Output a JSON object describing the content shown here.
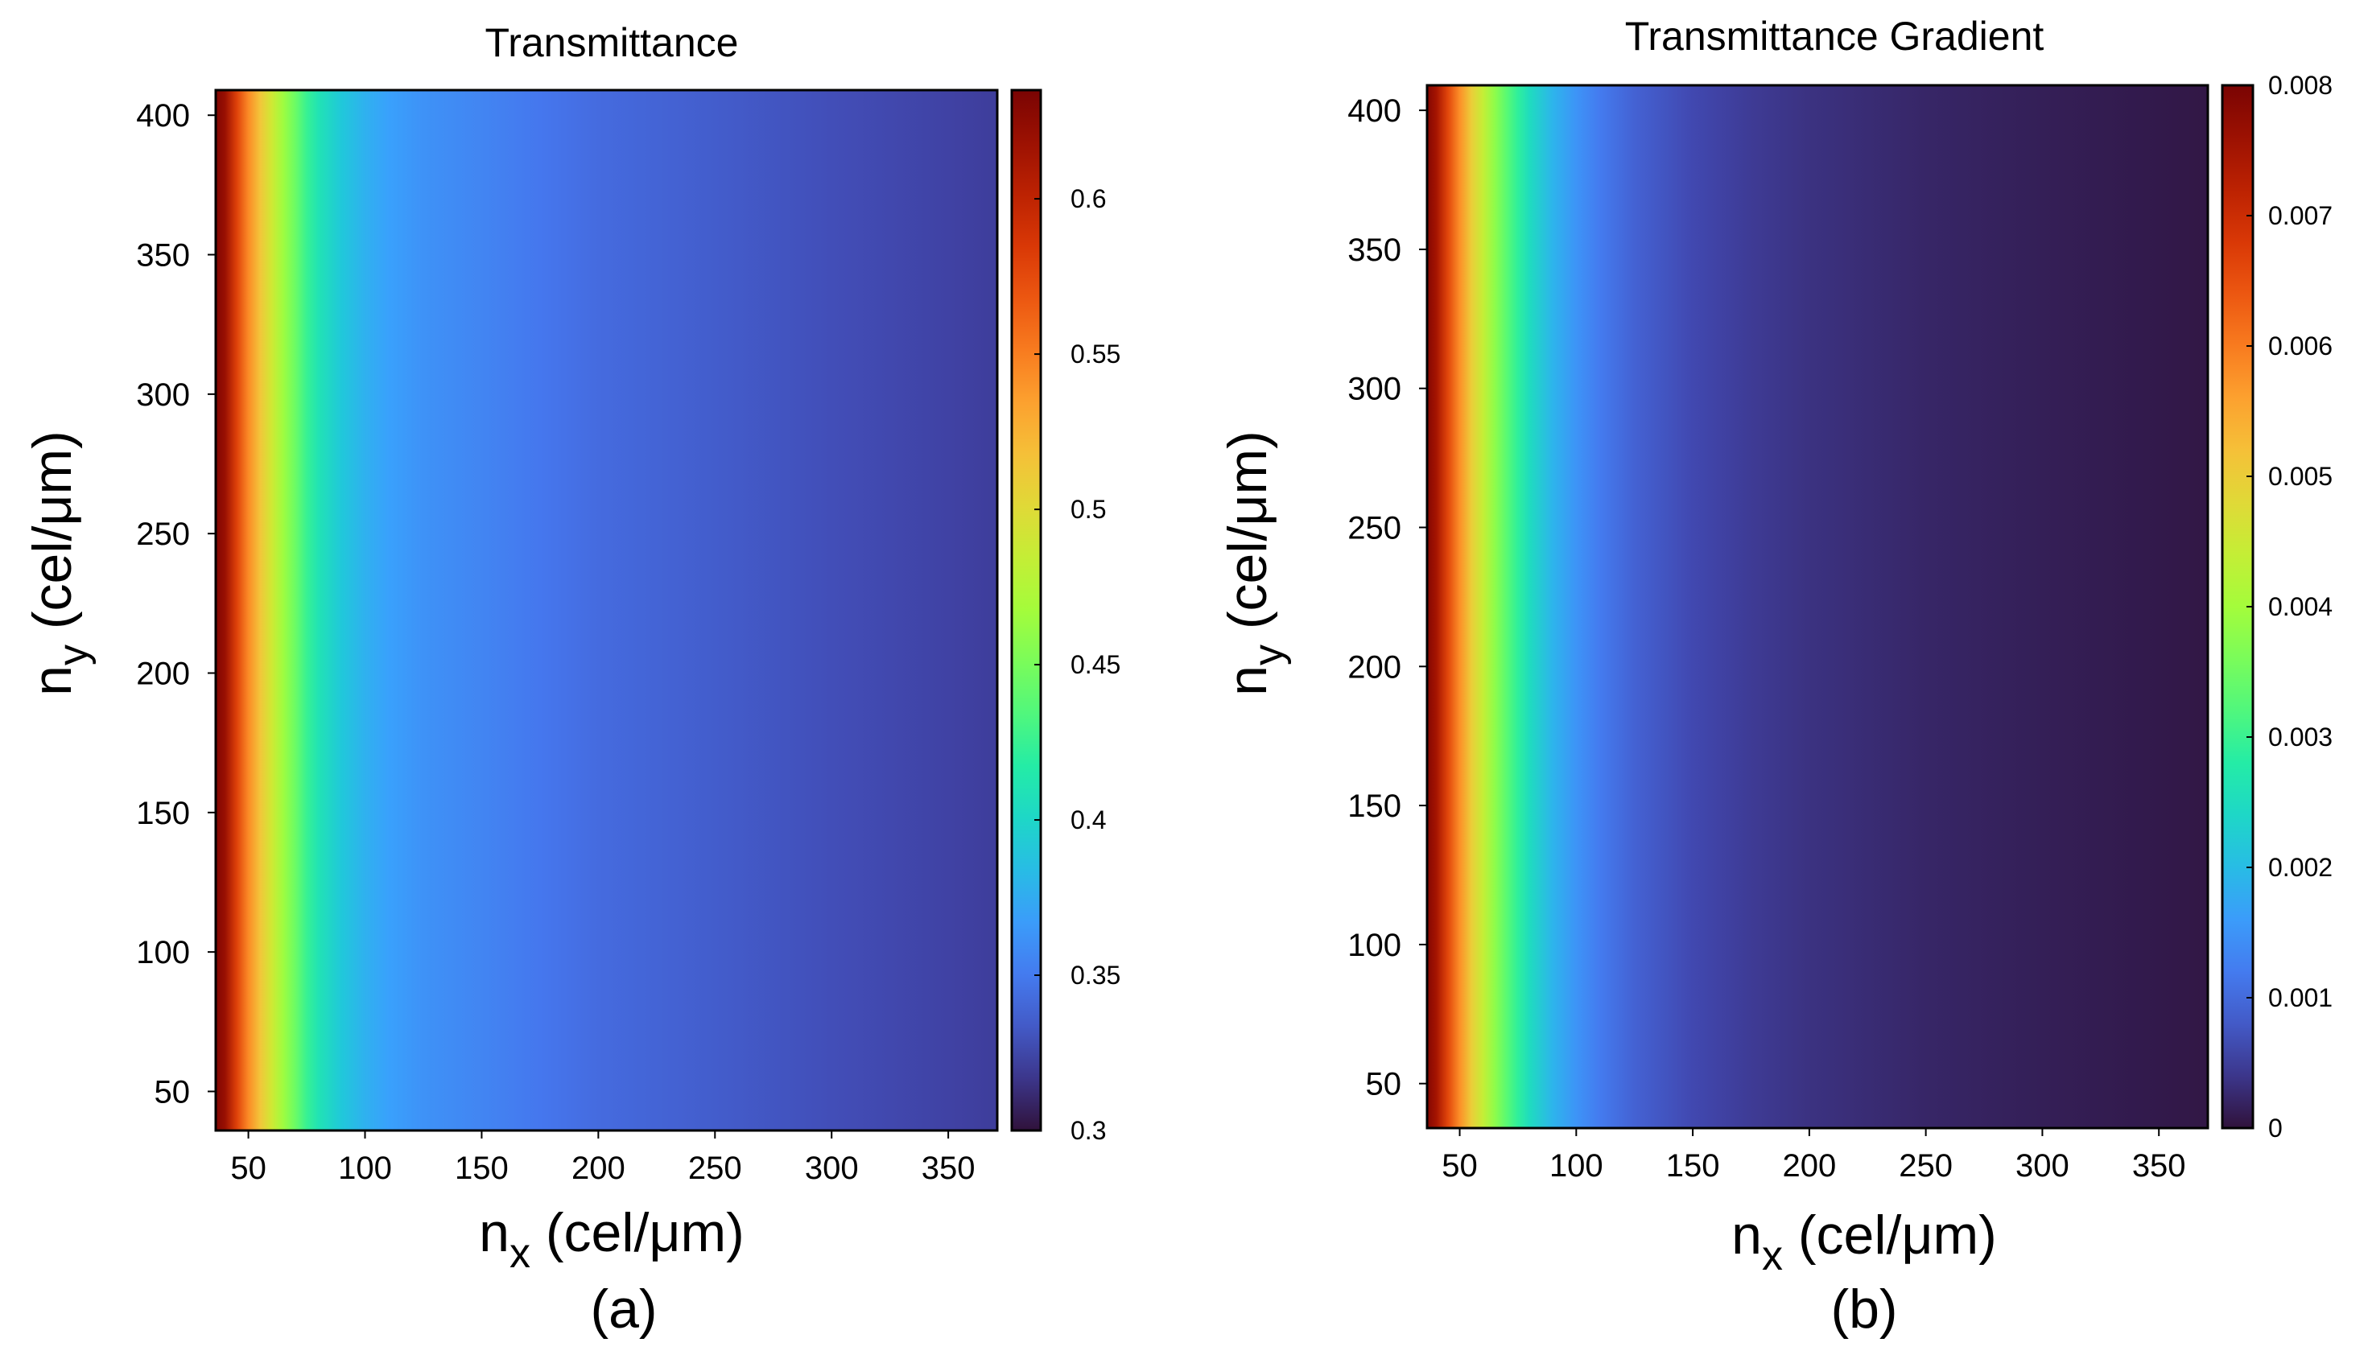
{
  "chart_data": [
    {
      "type": "heatmap",
      "panel_label": "(a)",
      "title": "Transmittance",
      "xlabel_main": "n",
      "xlabel_sub": "x",
      "xlabel_unit": " (cel/μm)",
      "ylabel_main": "n",
      "ylabel_sub": "y",
      "ylabel_unit": " (cel/μm)",
      "xlim": [
        36,
        371
      ],
      "ylim": [
        36,
        409
      ],
      "xticks": [
        50,
        100,
        150,
        200,
        250,
        300,
        350
      ],
      "xtick_labels": [
        "50",
        "100",
        "150",
        "200",
        "250",
        "300",
        "350"
      ],
      "yticks": [
        50,
        100,
        150,
        200,
        250,
        300,
        350,
        400
      ],
      "ytick_labels": [
        "50",
        "100",
        "150",
        "200",
        "250",
        "300",
        "350",
        "400"
      ],
      "colorbar": {
        "range": [
          0.3,
          0.635
        ],
        "ticks": [
          0.3,
          0.35,
          0.4,
          0.45,
          0.5,
          0.55,
          0.6
        ],
        "tick_labels": [
          "0.3",
          "0.35",
          "0.4",
          "0.45",
          "0.5",
          "0.55",
          "0.6"
        ]
      },
      "profile_x": [
        36,
        40,
        45,
        50,
        55,
        60,
        65,
        70,
        75,
        80,
        90,
        100,
        110,
        125,
        150,
        175,
        200,
        250,
        300,
        350,
        371
      ],
      "profile_value": [
        0.632,
        0.62,
        0.58,
        0.545,
        0.515,
        0.49,
        0.465,
        0.445,
        0.425,
        0.41,
        0.39,
        0.378,
        0.37,
        0.362,
        0.355,
        0.348,
        0.342,
        0.335,
        0.328,
        0.322,
        0.32
      ]
    },
    {
      "type": "heatmap",
      "panel_label": "(b)",
      "title": "Transmittance Gradient",
      "xlabel_main": "n",
      "xlabel_sub": "x",
      "xlabel_unit": " (cel/μm)",
      "ylabel_main": "n",
      "ylabel_sub": "y",
      "ylabel_unit": " (cel/μm)",
      "xlim": [
        36,
        371
      ],
      "ylim": [
        34,
        409
      ],
      "xticks": [
        50,
        100,
        150,
        200,
        250,
        300,
        350
      ],
      "xtick_labels": [
        "50",
        "100",
        "150",
        "200",
        "250",
        "300",
        "350"
      ],
      "yticks": [
        50,
        100,
        150,
        200,
        250,
        300,
        350,
        400
      ],
      "ytick_labels": [
        "50",
        "100",
        "150",
        "200",
        "250",
        "300",
        "350",
        "400"
      ],
      "colorbar": {
        "range": [
          0,
          0.008
        ],
        "ticks": [
          0,
          0.001,
          0.002,
          0.003,
          0.004,
          0.005,
          0.006,
          0.007,
          0.008
        ],
        "tick_labels": [
          "0",
          "0.001",
          "0.002",
          "0.003",
          "0.004",
          "0.005",
          "0.006",
          "0.007",
          "0.008"
        ]
      },
      "profile_x": [
        36,
        40,
        45,
        50,
        55,
        60,
        65,
        70,
        75,
        80,
        90,
        100,
        110,
        125,
        150,
        175,
        200,
        250,
        300,
        350,
        371
      ],
      "profile_value": [
        0.0079,
        0.0075,
        0.0066,
        0.0058,
        0.005,
        0.0044,
        0.0038,
        0.0033,
        0.0029,
        0.0025,
        0.0019,
        0.0015,
        0.0012,
        0.0009,
        0.0006,
        0.00045,
        0.00035,
        0.00022,
        0.00014,
        8e-05,
        5e-05
      ]
    }
  ]
}
